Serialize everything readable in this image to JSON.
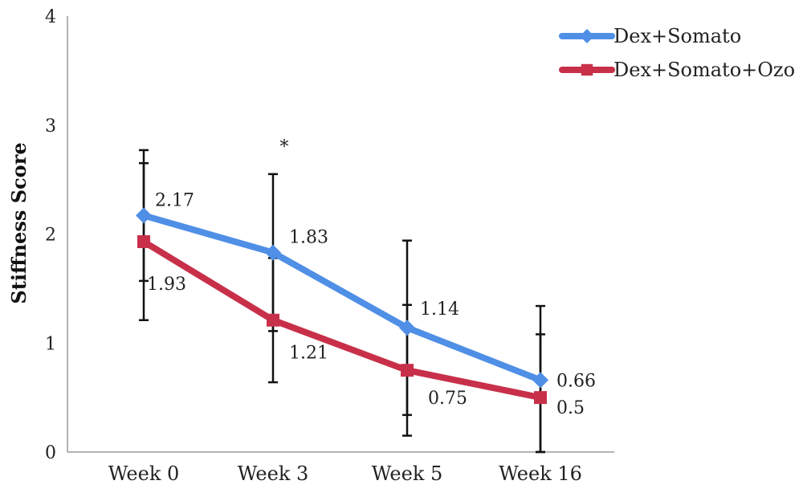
{
  "chart_data": {
    "type": "line",
    "categories": [
      "Week 0",
      "Week 3",
      "Week 5",
      "Week 16"
    ],
    "ylabel": "Stiffness Score",
    "ylim": [
      0,
      4
    ],
    "yticks": [
      "0",
      "1",
      "2",
      "3",
      "4"
    ],
    "grid": false,
    "legend_position": "top-right",
    "series": [
      {
        "name": "Dex+Somato",
        "color": "#4f8fe6",
        "marker": "diamond",
        "values": [
          2.17,
          1.83,
          1.14,
          0.66
        ],
        "labels": [
          "2.17",
          "1.83",
          "1.14",
          "0.66"
        ],
        "error": [
          0.6,
          0.72,
          0.8,
          0.68
        ]
      },
      {
        "name": "Dex+Somato+Ozo",
        "color": "#c8304a",
        "marker": "square",
        "values": [
          1.93,
          1.21,
          0.75,
          0.5
        ],
        "labels": [
          "1.93",
          "1.21",
          "0.75",
          "0.5"
        ],
        "error": [
          0.72,
          0.57,
          0.6,
          0.58
        ]
      }
    ],
    "annotations": [
      {
        "text": "*",
        "category": "Week 3"
      }
    ]
  }
}
